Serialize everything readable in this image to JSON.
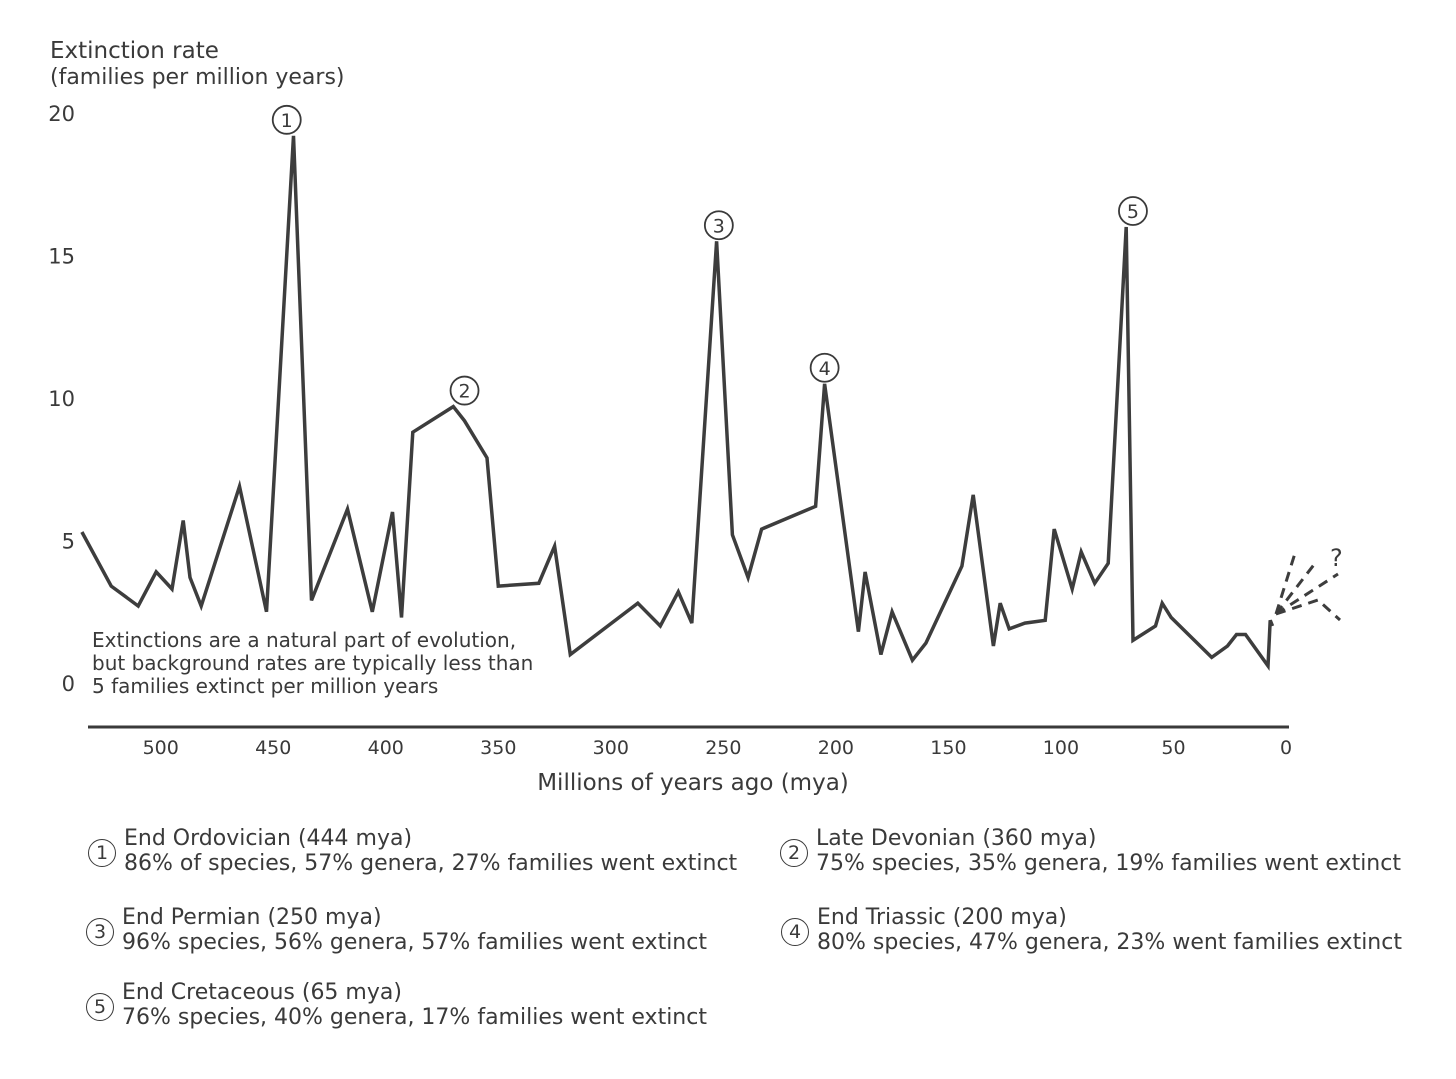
{
  "chart_data": {
    "type": "line",
    "title": "",
    "ylabel": "Extinction rate",
    "ylabel_sub": "(families per million years)",
    "xlabel": "Millions of years ago (mya)",
    "ylim": [
      0,
      20
    ],
    "xlim": [
      535,
      0
    ],
    "yticks": [
      "0",
      "5",
      "10",
      "15",
      "20"
    ],
    "yticks_values": [
      0,
      5,
      10,
      15,
      20
    ],
    "xticks": [
      "500",
      "450",
      "400",
      "350",
      "300",
      "250",
      "200",
      "150",
      "100",
      "50",
      "0"
    ],
    "xticks_values": [
      500,
      450,
      400,
      350,
      300,
      250,
      200,
      150,
      100,
      50,
      0
    ],
    "grid": false,
    "series": [
      {
        "x": [
          535,
          522,
          510,
          502,
          495,
          490,
          487,
          482,
          465,
          453,
          441,
          433,
          417,
          406,
          397,
          393,
          388,
          370,
          365,
          355,
          350,
          332,
          325,
          318,
          288,
          278,
          270,
          264,
          253,
          246,
          239,
          233,
          209,
          205,
          190,
          187,
          180,
          175,
          166,
          160,
          144,
          139,
          130,
          127,
          123,
          116,
          107,
          103,
          95,
          91,
          85,
          79,
          71,
          68,
          58,
          55,
          51,
          33,
          26,
          22,
          18,
          8,
          7,
          6
        ],
        "values": [
          5.3,
          3.4,
          2.7,
          3.9,
          3.3,
          5.7,
          3.7,
          2.7,
          6.9,
          2.5,
          19.2,
          2.9,
          6.1,
          2.5,
          6.0,
          2.3,
          8.8,
          9.7,
          9.2,
          7.9,
          3.4,
          3.5,
          4.8,
          1.0,
          2.8,
          2.0,
          3.2,
          2.1,
          15.5,
          5.2,
          3.7,
          5.4,
          6.2,
          10.5,
          1.8,
          3.9,
          1.0,
          2.5,
          0.8,
          1.4,
          4.1,
          6.6,
          1.3,
          2.8,
          1.9,
          2.1,
          2.2,
          5.4,
          3.3,
          4.6,
          3.5,
          4.2,
          16.0,
          1.5,
          2.0,
          2.8,
          2.3,
          0.9,
          1.3,
          1.7,
          1.7,
          0.6,
          2.2,
          2.0
        ]
      }
    ],
    "annotations": [
      {
        "label": "1",
        "x": 444,
        "y": 19.2
      },
      {
        "label": "2",
        "x": 365,
        "y": 9.7
      },
      {
        "label": "3",
        "x": 252,
        "y": 15.5
      },
      {
        "label": "4",
        "x": 205,
        "y": 10.5
      },
      {
        "label": "5",
        "x": 68,
        "y": 16.0
      }
    ],
    "note": [
      "Extinctions are a natural part of evolution,",
      "but background rates are typically less than",
      "5 families extinct per million years"
    ],
    "question_mark": "?"
  },
  "legend": [
    {
      "num": "1",
      "title": "End Ordovician (444 mya)",
      "desc": "86% of species, 57% genera, 27% families went extinct"
    },
    {
      "num": "2",
      "title": "Late Devonian (360 mya)",
      "desc": "75% species, 35% genera, 19% families went extinct"
    },
    {
      "num": "3",
      "title": "End Permian (250 mya)",
      "desc": "96% species, 56% genera, 57% families went extinct"
    },
    {
      "num": "4",
      "title": "End Triassic (200 mya)",
      "desc": "80% species, 47% genera, 23% went families extinct"
    },
    {
      "num": "5",
      "title": "End Cretaceous (65 mya)",
      "desc": "76% species, 40% genera, 17% families went extinct"
    }
  ]
}
